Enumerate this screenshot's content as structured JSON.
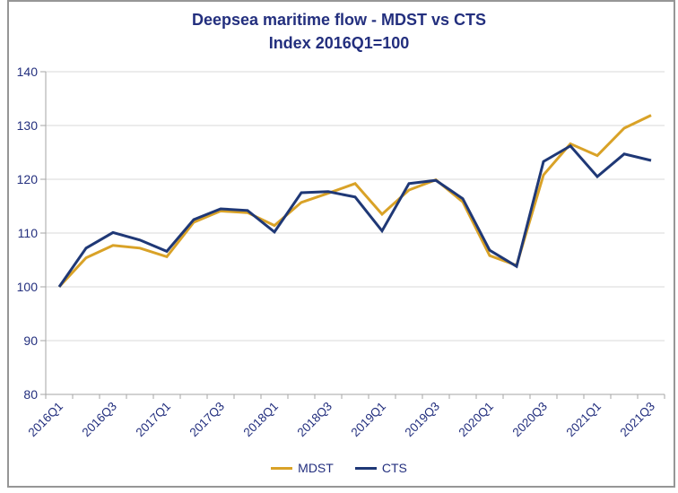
{
  "window": {
    "kind": "embedded-excel-line-chart"
  },
  "colors": {
    "mdst_line": "#D9A227",
    "cts_line": "#1F3876",
    "text_navy": "#232F7E",
    "gridline": "#D9D9D9",
    "axis": "#A6A6A6",
    "frame_border": "#969696",
    "background": "#FFFFFF"
  },
  "chart_data": {
    "type": "line",
    "title": "Deepsea maritime flow - MDST vs CTS",
    "subtitle": "Index 2016Q1=100",
    "xlabel": "",
    "ylabel": "",
    "ylim": [
      80,
      140
    ],
    "ytick_step": 10,
    "x_label_interval": 2,
    "grid": "horizontal",
    "legend_position": "bottom",
    "categories": [
      "2016Q1",
      "2016Q2",
      "2016Q3",
      "2016Q4",
      "2017Q1",
      "2017Q2",
      "2017Q3",
      "2017Q4",
      "2018Q1",
      "2018Q2",
      "2018Q3",
      "2018Q4",
      "2019Q1",
      "2019Q2",
      "2019Q3",
      "2019Q4",
      "2020Q1",
      "2020Q2",
      "2020Q3",
      "2020Q4",
      "2021Q1",
      "2021Q2",
      "2021Q3"
    ],
    "x_tick_labels_shown": [
      "2016Q1",
      "2016Q3",
      "2017Q1",
      "2017Q3",
      "2018Q1",
      "2018Q3",
      "2019Q1",
      "2019Q3",
      "2020Q1",
      "2020Q3",
      "2021Q1",
      "2021Q3"
    ],
    "y_tick_labels": [
      80,
      90,
      100,
      110,
      120,
      130,
      140
    ],
    "series": [
      {
        "name": "MDST",
        "color": "#D9A227",
        "values": [
          100,
          105.4,
          107.7,
          107.2,
          105.6,
          112.0,
          114.1,
          113.8,
          111.4,
          115.7,
          117.4,
          119.2,
          113.5,
          118.0,
          119.9,
          115.8,
          105.8,
          104.0,
          120.8,
          126.6,
          124.4,
          129.5,
          131.9
        ]
      },
      {
        "name": "CTS",
        "color": "#1F3876",
        "values": [
          100,
          107.2,
          110.1,
          108.7,
          106.6,
          112.5,
          114.5,
          114.2,
          110.2,
          117.5,
          117.7,
          116.7,
          110.4,
          119.2,
          119.8,
          116.4,
          106.8,
          103.8,
          123.3,
          126.2,
          120.5,
          124.7,
          123.5
        ]
      }
    ]
  }
}
